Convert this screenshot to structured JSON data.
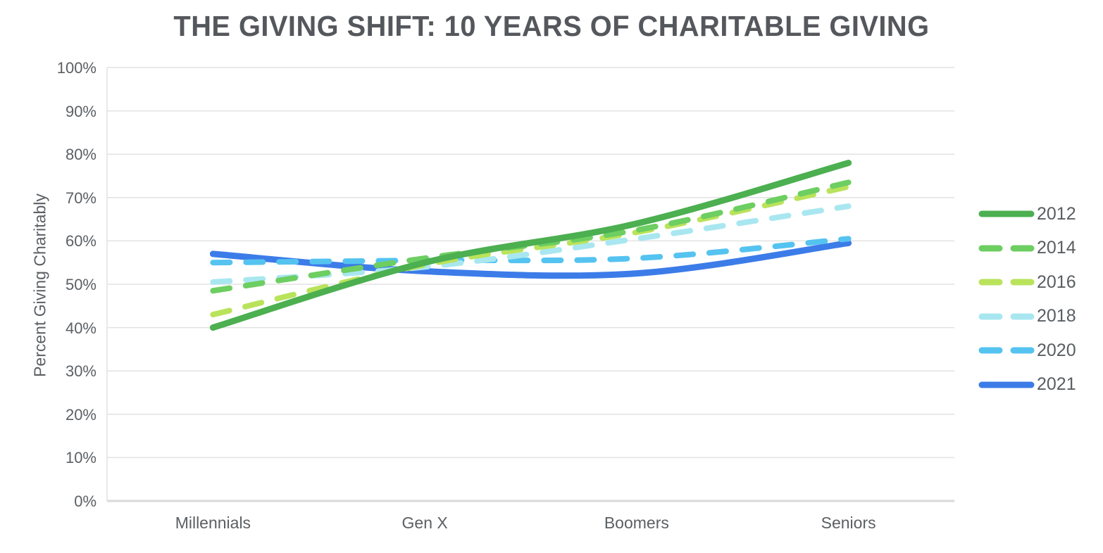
{
  "title": "THE GIVING SHIFT: 10 YEARS OF CHARITABLE GIVING",
  "chart_data": {
    "type": "line",
    "title": "THE GIVING SHIFT: 10 YEARS OF CHARITABLE GIVING",
    "xlabel": "",
    "ylabel": "Percent Giving Charitably",
    "categories": [
      "Millennials",
      "Gen X",
      "Boomers",
      "Seniors"
    ],
    "ylim": [
      0,
      100
    ],
    "ytick_step": 10,
    "ytick_suffix": "%",
    "grid": "horizontal",
    "legend_position": "right",
    "series": [
      {
        "name": "2021",
        "style": "solid",
        "color": "#3c7ce8",
        "values": [
          57,
          53,
          52.5,
          59.5
        ]
      },
      {
        "name": "2020",
        "style": "dashed",
        "color": "#55c3f0",
        "values": [
          55,
          55.5,
          56,
          60.5
        ]
      },
      {
        "name": "2018",
        "style": "dashed",
        "color": "#a9e7f0",
        "values": [
          50.5,
          54,
          60.5,
          68
        ]
      },
      {
        "name": "2016",
        "style": "dashed",
        "color": "#b9e35b",
        "values": [
          43,
          54.5,
          62,
          72.5
        ]
      },
      {
        "name": "2014",
        "style": "dashed",
        "color": "#6dce61",
        "values": [
          48.5,
          56,
          62.5,
          73.5
        ]
      },
      {
        "name": "2012",
        "style": "solid",
        "color": "#4caf50",
        "values": [
          40,
          55,
          64,
          78
        ]
      }
    ]
  },
  "colors": {
    "title_text": "#54575c",
    "axis_text": "#5b6064",
    "legend_text": "#595e62",
    "gridline": "#e2e2e2",
    "axis_line": "#d9d9d9",
    "background": "#ffffff"
  }
}
